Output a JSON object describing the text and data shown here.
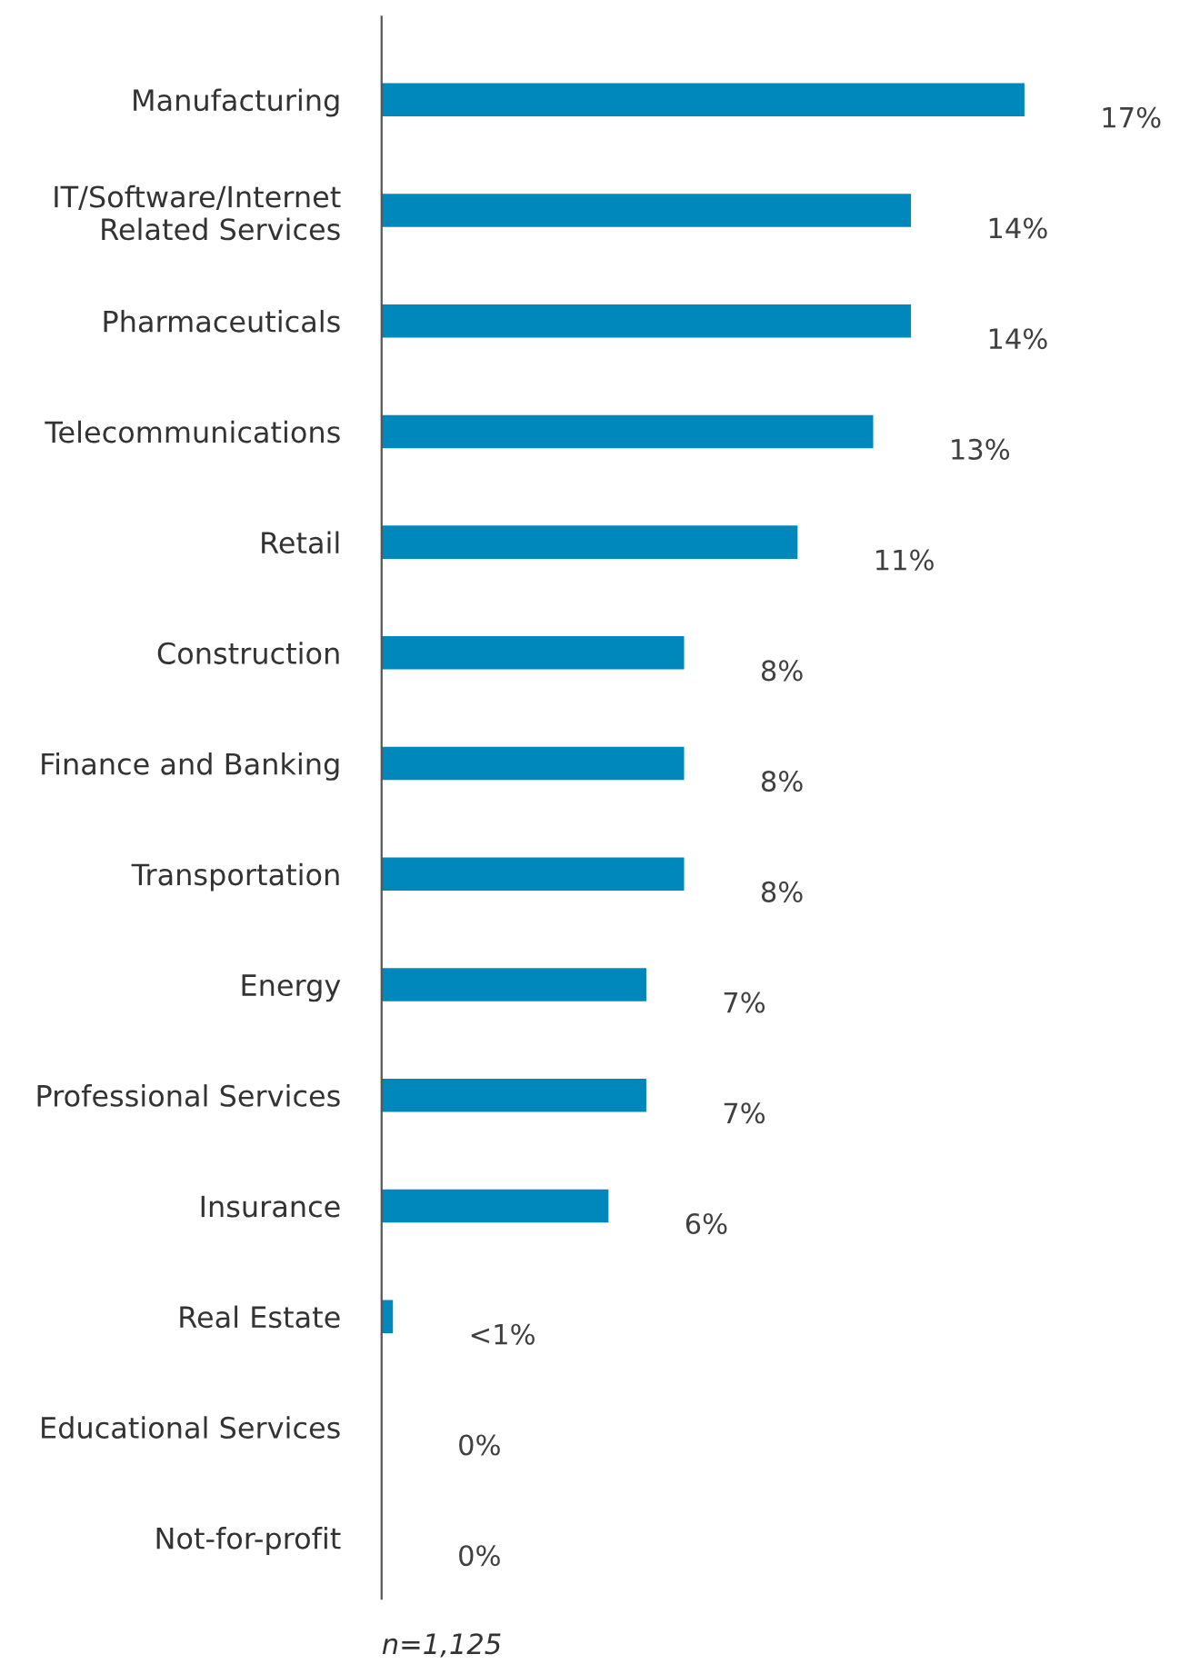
{
  "chart_data": {
    "type": "bar",
    "orientation": "horizontal",
    "categories": [
      "Manufacturing",
      "IT/Software/Internet\nRelated Services",
      "Pharmaceuticals",
      "Telecommunications",
      "Retail",
      "Construction",
      "Finance and Banking",
      "Transportation",
      "Energy",
      "Professional Services",
      "Insurance",
      "Real Estate",
      "Educational Services",
      "Not-for-profit"
    ],
    "values": [
      17,
      14,
      14,
      13,
      11,
      8,
      8,
      8,
      7,
      7,
      6,
      0.3,
      0,
      0
    ],
    "value_labels": [
      "17%",
      "14%",
      "14%",
      "13%",
      "11%",
      "8%",
      "8%",
      "8%",
      "7%",
      "7%",
      "6%",
      "<1%",
      "0%",
      "0%"
    ],
    "color": "#0088bd",
    "grid": false,
    "legend": false,
    "tick_labels": "y",
    "annotations": [
      "n=1,125"
    ]
  }
}
